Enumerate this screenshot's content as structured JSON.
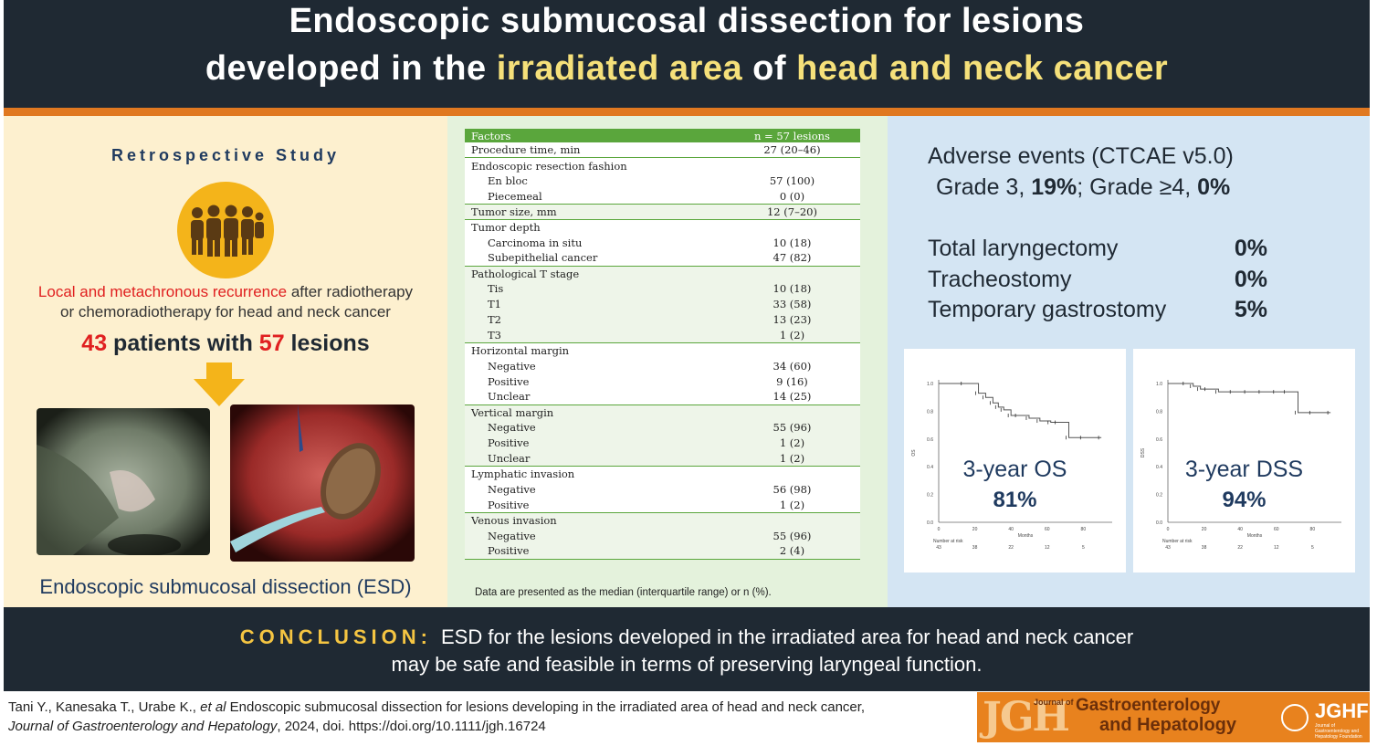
{
  "header": {
    "title_line1": "Endoscopic submucosal dissection for lesions",
    "title_line2_a": "developed in the ",
    "title_line2_hl1": "irradiated area",
    "title_line2_b": " of ",
    "title_line2_hl2": "head and neck cancer"
  },
  "left": {
    "study": "Retrospective Study",
    "icon": "people-group-icon",
    "rec_red": "Local and metachronous  recurrence",
    "rec_rest": " after radiotherapy",
    "rec_line2": "or chemoradiotherapy for head and neck cancer",
    "patients_n": "43",
    "patients_mid": " patients with ",
    "lesions_n": "57",
    "lesions_word": " lesions",
    "esd_label": "Endoscopic submucosal  dissection (ESD)"
  },
  "table": {
    "header": [
      "Factors",
      "n = 57 lesions"
    ],
    "groups": [
      {
        "shade": "w",
        "rows": [
          {
            "label": "Procedure time, min",
            "value": "27 (20–46)",
            "indent": false
          }
        ]
      },
      {
        "shade": "w",
        "rows": [
          {
            "label": "Endoscopic resection fashion",
            "value": "",
            "indent": false
          },
          {
            "label": "En bloc",
            "value": "57 (100)",
            "indent": true
          },
          {
            "label": "Piecemeal",
            "value": "0 (0)",
            "indent": true
          }
        ]
      },
      {
        "shade": "g",
        "rows": [
          {
            "label": "Tumor size, mm",
            "value": "12 (7–20)",
            "indent": false
          }
        ]
      },
      {
        "shade": "w",
        "rows": [
          {
            "label": "Tumor depth",
            "value": "",
            "indent": false
          },
          {
            "label": "Carcinoma in situ",
            "value": "10 (18)",
            "indent": true
          },
          {
            "label": "Subepithelial cancer",
            "value": "47 (82)",
            "indent": true
          }
        ]
      },
      {
        "shade": "g",
        "rows": [
          {
            "label": "Pathological T stage",
            "value": "",
            "indent": false
          },
          {
            "label": "Tis",
            "value": "10 (18)",
            "indent": true
          },
          {
            "label": "T1",
            "value": "33 (58)",
            "indent": true
          },
          {
            "label": "T2",
            "value": "13 (23)",
            "indent": true
          },
          {
            "label": "T3",
            "value": "1 (2)",
            "indent": true
          }
        ]
      },
      {
        "shade": "w",
        "rows": [
          {
            "label": "Horizontal margin",
            "value": "",
            "indent": false
          },
          {
            "label": "Negative",
            "value": "34 (60)",
            "indent": true
          },
          {
            "label": "Positive",
            "value": "9 (16)",
            "indent": true
          },
          {
            "label": "Unclear",
            "value": "14 (25)",
            "indent": true
          }
        ]
      },
      {
        "shade": "g",
        "rows": [
          {
            "label": "Vertical margin",
            "value": "",
            "indent": false
          },
          {
            "label": "Negative",
            "value": "55 (96)",
            "indent": true
          },
          {
            "label": "Positive",
            "value": "1 (2)",
            "indent": true
          },
          {
            "label": "Unclear",
            "value": "1 (2)",
            "indent": true
          }
        ]
      },
      {
        "shade": "w",
        "rows": [
          {
            "label": "Lymphatic invasion",
            "value": "",
            "indent": false
          },
          {
            "label": "Negative",
            "value": "56 (98)",
            "indent": true
          },
          {
            "label": "Positive",
            "value": "1 (2)",
            "indent": true
          }
        ]
      },
      {
        "shade": "g",
        "rows": [
          {
            "label": "Venous  invasion",
            "value": "",
            "indent": false
          },
          {
            "label": "Negative",
            "value": "55 (96)",
            "indent": true
          },
          {
            "label": "Positive",
            "value": "2 (4)",
            "indent": true
          }
        ]
      }
    ],
    "note": "Data are presented as the median (interquartile range) or n (%)."
  },
  "right": {
    "ae_title": "Adverse events (CTCAE v5.0)",
    "grade3_label": "Grade 3, ",
    "grade3_value": "19%",
    "grade4_label": ";  Grade ≥4, ",
    "grade4_value": "0%",
    "procedures": [
      {
        "label": "Total laryngectomy",
        "value": "0%"
      },
      {
        "label": "Tracheostomy",
        "value": "0%"
      },
      {
        "label": "Temporary gastrostomy",
        "value": "5%"
      }
    ],
    "os_label": "3-year OS",
    "os_value": "81%",
    "dss_label": "3-year DSS",
    "dss_value": "94%"
  },
  "conclusion": {
    "keyword": "CONCLUSION:",
    "line1": "ESD for the lesions developed in the irradiated area for head and neck cancer",
    "line2": "may be safe and feasible in terms of preserving laryngeal  function."
  },
  "citation": {
    "authors": "Tani Y., Kanesaka T., Urabe K., ",
    "etal": "et al",
    "title": " Endoscopic submucosal dissection for lesions developing in the irradiated area of head and neck cancer,",
    "journal": "Journal of Gastroenterology and Hepatology",
    "rest": ", 2024, doi. https://doi.org/10.1111/jgh.16724"
  },
  "logo": {
    "abbr": "JGH",
    "journal_of": "Journal of",
    "name1": "Gastroenterology",
    "name2": "and Hepatology",
    "foundation": "JGHF",
    "foundation_sub": "Journal of Gastroenterology and Hepatology Foundation"
  },
  "chart_data": [
    {
      "type": "line",
      "title": "",
      "xlabel": "Months",
      "ylabel": "OS",
      "x_ticks": [
        0,
        20,
        40,
        60,
        80
      ],
      "y_ticks": [
        "0.0",
        "0.2",
        "0.4",
        "0.6",
        "0.8",
        "1.0"
      ],
      "ylim": [
        0,
        1
      ],
      "xlim": [
        0,
        96
      ],
      "risk_label": "Number at risk",
      "at_risk": [
        "43",
        "38",
        "22",
        "12",
        "5"
      ],
      "series": [
        {
          "x": [
            0,
            14,
            22,
            26,
            30,
            33,
            36,
            40,
            44,
            50,
            56,
            62,
            66,
            72,
            80,
            90
          ],
          "y": [
            1.0,
            1.0,
            0.93,
            0.9,
            0.86,
            0.83,
            0.81,
            0.77,
            0.77,
            0.75,
            0.73,
            0.72,
            0.72,
            0.61,
            0.61,
            0.61
          ]
        }
      ]
    },
    {
      "type": "line",
      "title": "",
      "xlabel": "Months",
      "ylabel": "DSS",
      "x_ticks": [
        0,
        20,
        40,
        60,
        80
      ],
      "y_ticks": [
        "0.0",
        "0.2",
        "0.4",
        "0.6",
        "0.8",
        "1.0"
      ],
      "ylim": [
        0,
        1
      ],
      "xlim": [
        0,
        96
      ],
      "risk_label": "Number at risk",
      "at_risk": [
        "43",
        "38",
        "22",
        "12",
        "5"
      ],
      "series": [
        {
          "x": [
            0,
            10,
            14,
            18,
            22,
            28,
            36,
            44,
            52,
            60,
            66,
            72,
            80,
            90
          ],
          "y": [
            1.0,
            1.0,
            0.98,
            0.96,
            0.96,
            0.94,
            0.94,
            0.94,
            0.94,
            0.94,
            0.94,
            0.79,
            0.79,
            0.79
          ]
        }
      ]
    }
  ]
}
